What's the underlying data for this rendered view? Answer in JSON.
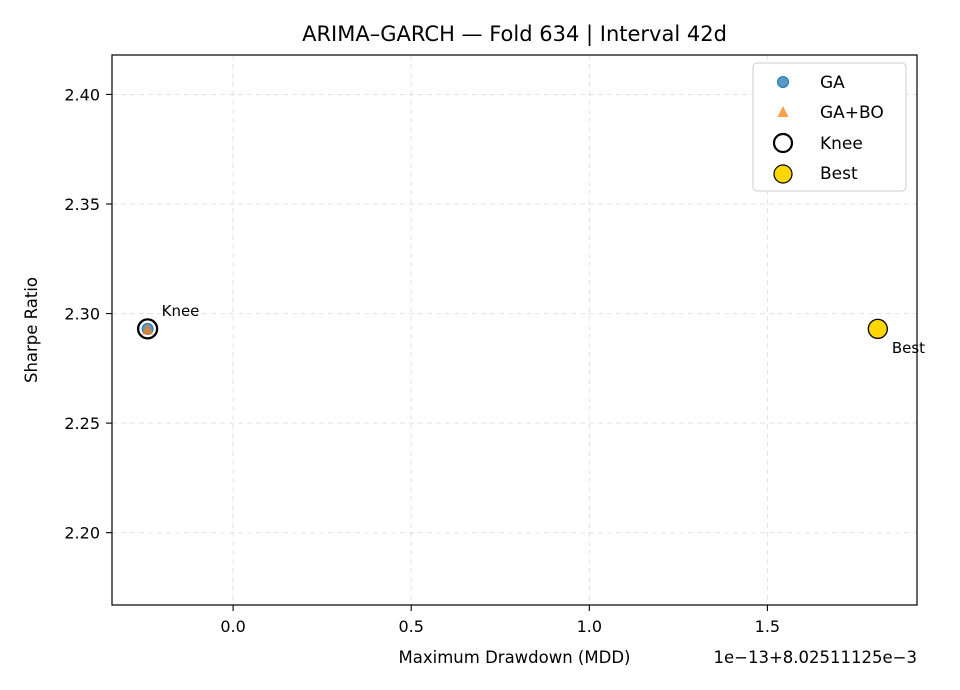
{
  "chart_data": {
    "type": "scatter",
    "title": "ARIMA–GARCH — Fold 634 | Interval 42d",
    "xlabel": "Maximum Drawdown (MDD)",
    "ylabel": "Sharpe Ratio",
    "x_offset_label": "1e−13+8.02511125e−3",
    "xlim": [
      -0.34,
      1.92
    ],
    "ylim": [
      2.167,
      2.418
    ],
    "xticks": [
      0.0,
      0.5,
      1.0,
      1.5
    ],
    "xtick_labels": [
      "0.0",
      "0.5",
      "1.0",
      "1.5"
    ],
    "yticks": [
      2.2,
      2.25,
      2.3,
      2.35,
      2.4
    ],
    "ytick_labels": [
      "2.20",
      "2.25",
      "2.30",
      "2.35",
      "2.40"
    ],
    "grid": true,
    "legend_position": "top-right",
    "series": [
      {
        "name": "GA",
        "marker": "circle",
        "color": "#1f77b4",
        "points": [
          [
            -0.24,
            2.293
          ]
        ]
      },
      {
        "name": "GA+BO",
        "marker": "triangle",
        "color": "#ff7f0e",
        "points": [
          [
            -0.24,
            2.293
          ]
        ]
      },
      {
        "name": "Knee",
        "marker": "hollow-circle",
        "color": "#000000",
        "points": [
          [
            -0.24,
            2.293
          ]
        ]
      },
      {
        "name": "Best",
        "marker": "filled-circle",
        "color": "#FFD700",
        "points": [
          [
            1.81,
            2.293
          ]
        ]
      }
    ],
    "annotations": [
      {
        "text": "Knee",
        "x": -0.24,
        "y": 2.293
      },
      {
        "text": "Best",
        "x": 1.81,
        "y": 2.293
      }
    ]
  }
}
